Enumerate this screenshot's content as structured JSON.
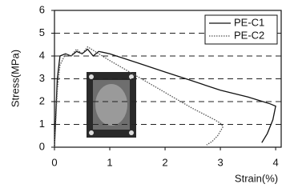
{
  "chart_data": {
    "type": "line",
    "x_label": "Strain(%)",
    "y_label": "Stress(MPa)",
    "xlim": [
      0,
      4.1
    ],
    "ylim": [
      0,
      6
    ],
    "xticks": [
      0,
      1,
      2,
      3,
      4
    ],
    "yticks": [
      0,
      1,
      2,
      3,
      4,
      5,
      6
    ],
    "grid": true,
    "legend": "upper right",
    "series": [
      {
        "name": "PE-C1",
        "color": "#111111",
        "style": "solid",
        "x": [
          0,
          0.05,
          0.1,
          0.2,
          0.3,
          0.4,
          0.5,
          0.6,
          0.7,
          0.8,
          1.0,
          1.5,
          2.0,
          2.5,
          3.0,
          3.5,
          3.9,
          4.0,
          3.95,
          3.85,
          3.75
        ],
        "values": [
          0,
          3.0,
          4.0,
          4.1,
          4.0,
          4.2,
          4.1,
          4.3,
          4.0,
          4.2,
          4.1,
          3.7,
          3.3,
          2.9,
          2.5,
          2.2,
          1.9,
          1.8,
          1.2,
          0.6,
          0.2
        ]
      },
      {
        "name": "PE-C2",
        "color": "#555555",
        "style": "dotted",
        "x": [
          0,
          0.05,
          0.1,
          0.2,
          0.3,
          0.4,
          0.5,
          0.6,
          0.8,
          1.0,
          1.5,
          2.0,
          2.5,
          2.9,
          3.0,
          3.05,
          2.95,
          2.85,
          2.75
        ],
        "values": [
          0,
          2.5,
          3.6,
          4.1,
          4.0,
          4.3,
          4.1,
          4.4,
          4.1,
          3.8,
          3.1,
          2.4,
          1.7,
          1.2,
          1.05,
          0.9,
          0.5,
          0.25,
          0.1
        ]
      }
    ]
  }
}
